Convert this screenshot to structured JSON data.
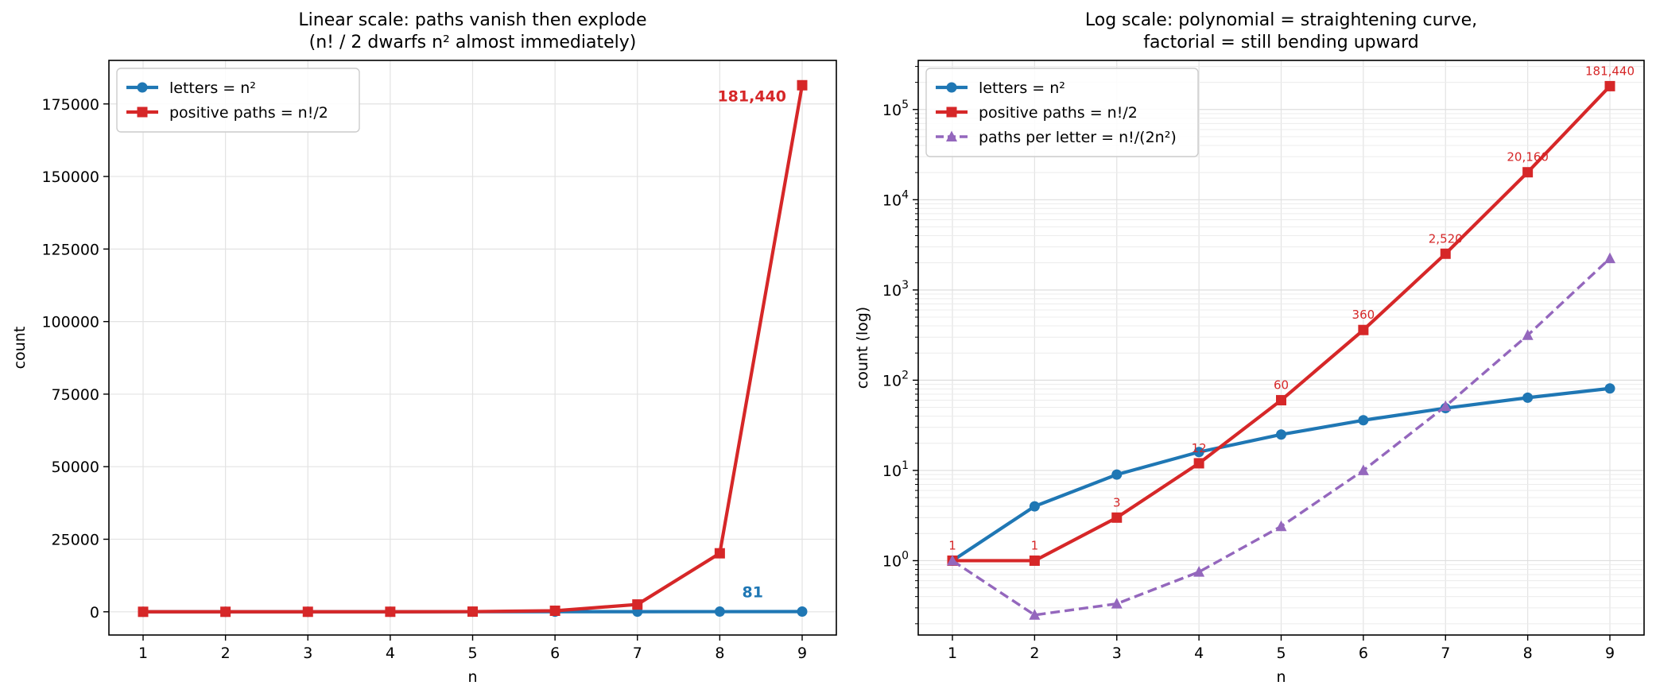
{
  "chart_data": [
    {
      "type": "line",
      "title_lines": [
        "Linear scale: paths vanish then explode",
        "(n! / 2 dwarfs n² almost immediately)"
      ],
      "xlabel": "n",
      "ylabel": "count",
      "x": [
        1,
        2,
        3,
        4,
        5,
        6,
        7,
        8,
        9
      ],
      "y_scale": "linear",
      "ylim": [
        -8000,
        190000
      ],
      "y_ticks": [
        0,
        25000,
        50000,
        75000,
        100000,
        125000,
        150000,
        175000
      ],
      "y_tick_labels": [
        "0",
        "25000",
        "50000",
        "75000",
        "100000",
        "125000",
        "150000",
        "175000"
      ],
      "grid": true,
      "legend_position": "top-left",
      "series": [
        {
          "name": "letters = n²",
          "values": [
            1,
            4,
            9,
            16,
            25,
            36,
            49,
            64,
            81
          ],
          "color": "#1f77b4",
          "marker": "circle",
          "dash": "solid"
        },
        {
          "name": "positive paths = n!/2",
          "values": [
            1,
            1,
            3,
            12,
            60,
            360,
            2520,
            20160,
            181440
          ],
          "color": "#d62728",
          "marker": "square",
          "dash": "solid"
        }
      ],
      "annotations": [
        {
          "text": "181,440",
          "x": 9,
          "y": 181440,
          "color": "#d62728"
        },
        {
          "text": "81",
          "x": 9,
          "y": 81,
          "color": "#1f77b4"
        }
      ]
    },
    {
      "type": "line",
      "title_lines": [
        "Log scale: polynomial = straightening curve,",
        "factorial = still bending upward"
      ],
      "xlabel": "n",
      "ylabel": "count (log)",
      "x": [
        1,
        2,
        3,
        4,
        5,
        6,
        7,
        8,
        9
      ],
      "y_scale": "log",
      "ylim": [
        0.15,
        350000
      ],
      "y_ticks": [
        1,
        10,
        100,
        1000,
        10000,
        100000
      ],
      "y_tick_labels": [
        "10^0",
        "10^1",
        "10^2",
        "10^3",
        "10^4",
        "10^5"
      ],
      "grid": true,
      "legend_position": "top-left",
      "series": [
        {
          "name": "letters = n²",
          "values": [
            1,
            4,
            9,
            16,
            25,
            36,
            49,
            64,
            81
          ],
          "color": "#1f77b4",
          "marker": "circle",
          "dash": "solid"
        },
        {
          "name": "positive paths = n!/2",
          "values": [
            1,
            1,
            3,
            12,
            60,
            360,
            2520,
            20160,
            181440
          ],
          "color": "#d62728",
          "marker": "square",
          "dash": "solid"
        },
        {
          "name": "paths per letter = n!/(2n²)",
          "values": [
            1,
            0.25,
            0.333,
            0.75,
            2.4,
            10,
            51.43,
            315,
            2240
          ],
          "color": "#9467bd",
          "marker": "triangle",
          "dash": "dashed"
        }
      ],
      "point_labels": {
        "series": "positive paths = n!/2",
        "color": "#d62728",
        "labels": [
          "1",
          "1",
          "3",
          "12",
          "60",
          "360",
          "2,520",
          "20,160",
          "181,440"
        ]
      }
    }
  ]
}
